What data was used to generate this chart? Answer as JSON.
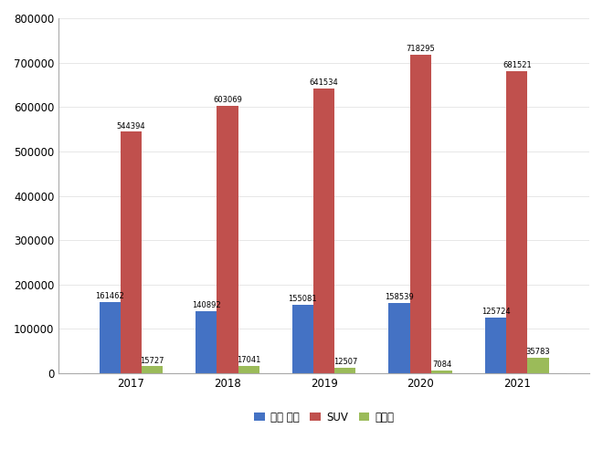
{
  "years": [
    "2017",
    "2018",
    "2019",
    "2020",
    "2021"
  ],
  "sedan": [
    161462,
    140892,
    155081,
    158539,
    125724
  ],
  "suv": [
    544394,
    603069,
    641534,
    718295,
    681521
  ],
  "ev": [
    15727,
    17041,
    12507,
    7084,
    35783
  ],
  "sedan_color": "#4472C4",
  "suv_color": "#C0504D",
  "ev_color": "#9BBB59",
  "bar_width": 0.22,
  "ylim": [
    0,
    800000
  ],
  "yticks": [
    0,
    100000,
    200000,
    300000,
    400000,
    500000,
    600000,
    700000,
    800000
  ],
  "legend_labels": [
    "중형 세단",
    "SUV",
    "전기자"
  ],
  "tick_fontsize": 8.5,
  "legend_fontsize": 8.5,
  "value_fontsize": 6.0,
  "background_color": "#ffffff",
  "spine_color": "#aaaaaa"
}
